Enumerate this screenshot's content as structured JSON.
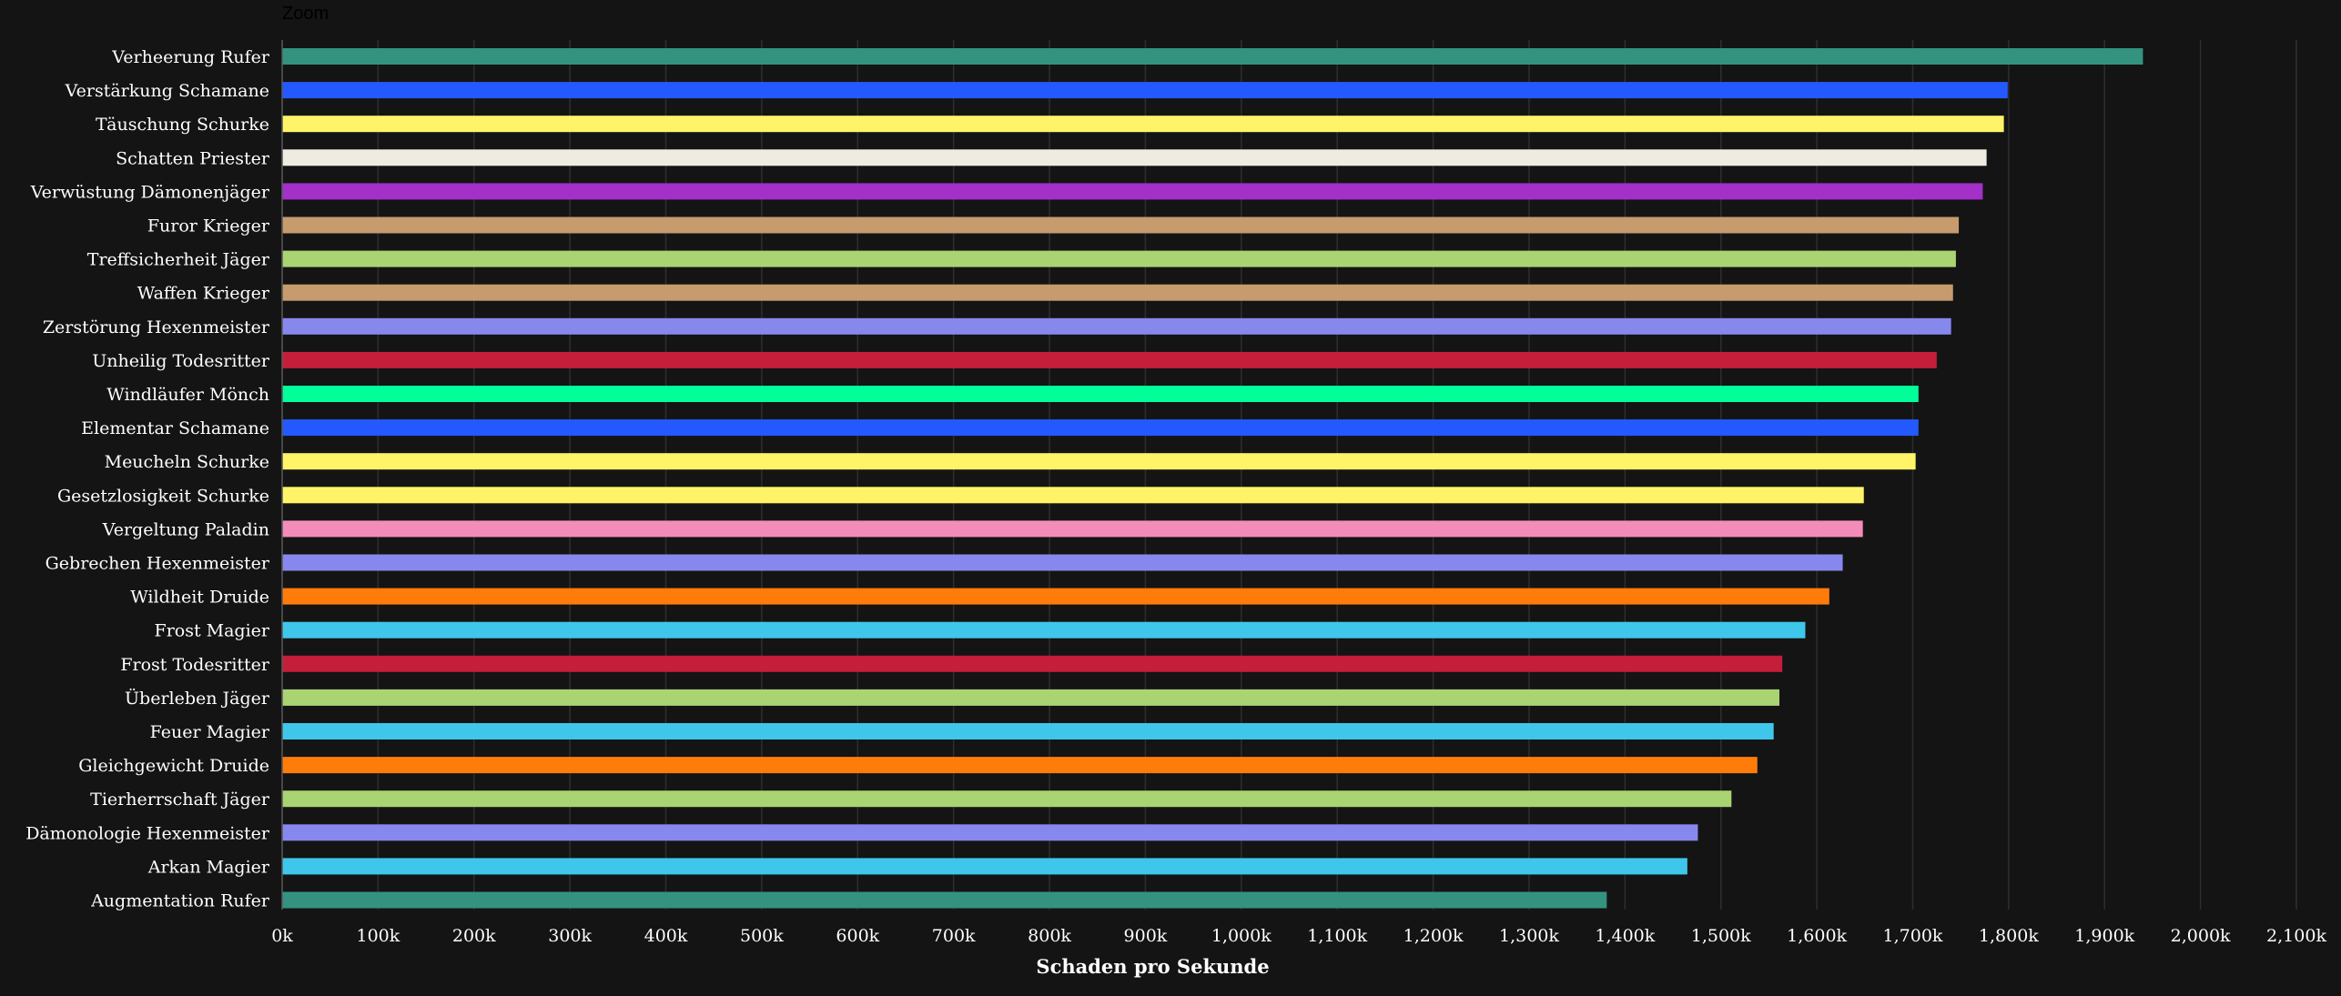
{
  "zoom_label": "Zoom",
  "chart_data": {
    "type": "bar",
    "orientation": "horizontal",
    "title": "",
    "xlabel": "Schaden pro Sekunde",
    "ylabel": "",
    "xlim": [
      0,
      2100000
    ],
    "x_ticks": [
      "0k",
      "100k",
      "200k",
      "300k",
      "400k",
      "500k",
      "600k",
      "700k",
      "800k",
      "900k",
      "1,000k",
      "1,100k",
      "1,200k",
      "1,300k",
      "1,400k",
      "1,500k",
      "1,600k",
      "1,700k",
      "1,800k",
      "1,900k",
      "2,000k",
      "2,100k"
    ],
    "grid": true,
    "categories": [
      "Verheerung Rufer",
      "Verstärkung Schamane",
      "Täuschung Schurke",
      "Schatten Priester",
      "Verwüstung Dämonenjäger",
      "Furor Krieger",
      "Treffsicherheit Jäger",
      "Waffen Krieger",
      "Zerstörung Hexenmeister",
      "Unheilig Todesritter",
      "Windläufer Mönch",
      "Elementar Schamane",
      "Meucheln Schurke",
      "Gesetzlosigkeit Schurke",
      "Vergeltung Paladin",
      "Gebrechen Hexenmeister",
      "Wildheit Druide",
      "Frost Magier",
      "Frost Todesritter",
      "Überleben Jäger",
      "Feuer Magier",
      "Gleichgewicht Druide",
      "Tierherrschaft Jäger",
      "Dämonologie Hexenmeister",
      "Arkan Magier",
      "Augmentation Rufer"
    ],
    "values": [
      1940000,
      1799000,
      1795000,
      1777000,
      1773000,
      1748000,
      1745000,
      1742000,
      1740000,
      1725000,
      1706000,
      1706000,
      1703000,
      1649000,
      1648000,
      1627000,
      1613000,
      1588000,
      1564000,
      1561000,
      1555000,
      1538000,
      1511000,
      1476000,
      1465000,
      1381000
    ],
    "colors": [
      "#33937F",
      "#2459FF",
      "#FFF468",
      "#F0EBE0",
      "#A330C9",
      "#C69B6D",
      "#AAD372",
      "#C69B6D",
      "#8788EE",
      "#C41E3A",
      "#00FF98",
      "#2459FF",
      "#FFF468",
      "#FFF468",
      "#F48CBA",
      "#8788EE",
      "#FF7C0A",
      "#3FC7EB",
      "#C41E3A",
      "#AAD372",
      "#3FC7EB",
      "#FF7C0A",
      "#AAD372",
      "#8788EE",
      "#3FC7EB",
      "#33937F"
    ]
  }
}
